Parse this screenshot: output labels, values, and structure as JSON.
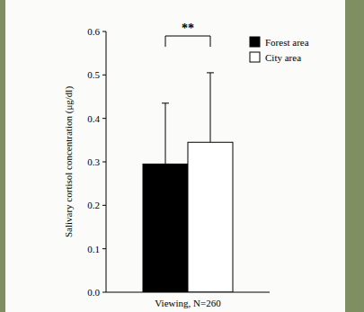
{
  "chart_data": {
    "type": "bar",
    "y_label": "Salivary cortisol concentration (μg/dl)",
    "categories": [
      "Viewing, N=260"
    ],
    "series": [
      {
        "name": "Forest area",
        "color": "#000000",
        "values": [
          0.295
        ],
        "errors": [
          0.14
        ]
      },
      {
        "name": "City area",
        "color": "#ffffff",
        "values": [
          0.345
        ],
        "errors": [
          0.16
        ]
      }
    ],
    "ylim": [
      0,
      0.6
    ],
    "yticks": [
      {
        "value": 0,
        "label": "0.0"
      },
      0.1,
      0.2,
      0.3,
      0.4,
      0.5,
      0.6
    ],
    "legend": "upper right",
    "annotations": [
      {
        "text": "**"
      }
    ]
  }
}
